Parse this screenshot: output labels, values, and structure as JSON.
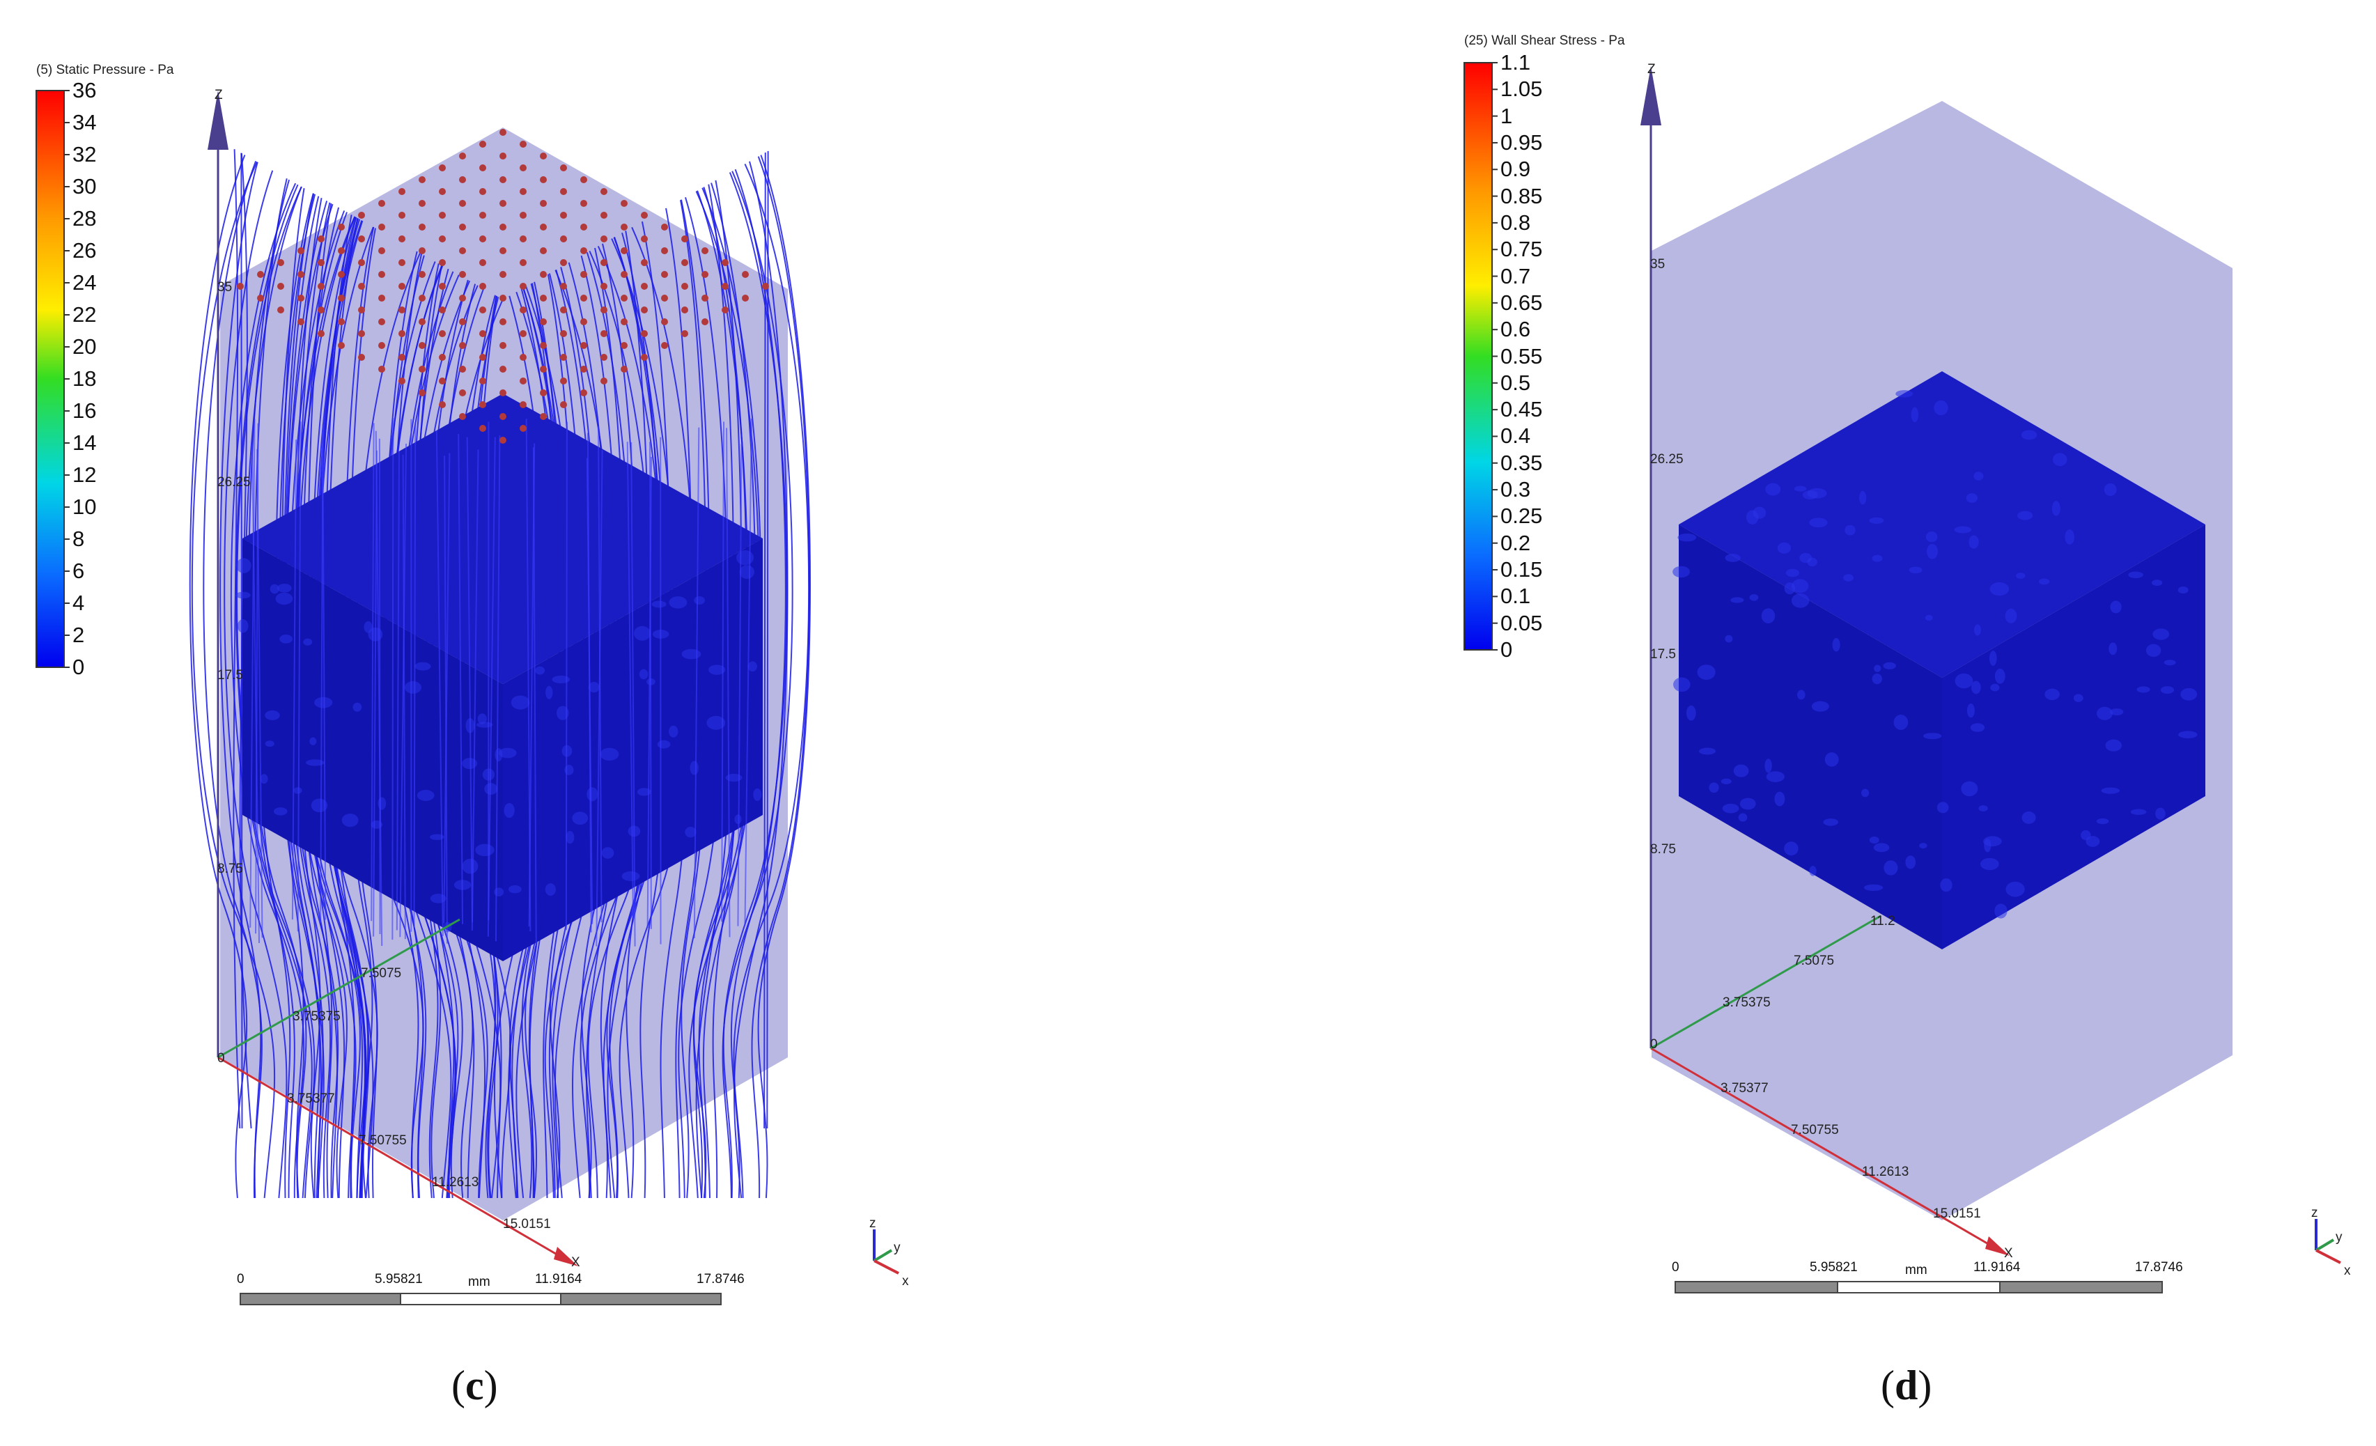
{
  "panel_c": {
    "legend": {
      "title": "(5) Static Pressure - Pa",
      "labels": [
        "36",
        "34",
        "32",
        "30",
        "28",
        "26",
        "24",
        "22",
        "20",
        "18",
        "16",
        "14",
        "12",
        "10",
        "8",
        "6",
        "4",
        "2",
        "0"
      ]
    },
    "z_ticks": [
      "35",
      "26.25",
      "17.5",
      "8.75",
      "0"
    ],
    "y_ticks": [
      "3.75375",
      "7.5075"
    ],
    "x_ticks": [
      "3.75377",
      "7.50755",
      "11.2613",
      "15.0151"
    ],
    "axis_letters": {
      "z": "Z",
      "x": "X"
    },
    "scale": {
      "labels": [
        "0",
        "5.95821",
        "11.9164",
        "17.8746"
      ],
      "unit": "mm"
    },
    "triad": {
      "z": "z",
      "y": "y",
      "x": "x"
    },
    "caption_open": "(",
    "caption_letter": "c",
    "caption_close": ")"
  },
  "panel_d": {
    "legend": {
      "title": "(25) Wall Shear Stress - Pa",
      "labels": [
        "1.1",
        "1.05",
        "1",
        "0.95",
        "0.9",
        "0.85",
        "0.8",
        "0.75",
        "0.7",
        "0.65",
        "0.6",
        "0.55",
        "0.5",
        "0.45",
        "0.4",
        "0.35",
        "0.3",
        "0.25",
        "0.2",
        "0.15",
        "0.1",
        "0.05",
        "0"
      ]
    },
    "z_ticks": [
      "35",
      "26.25",
      "17.5",
      "8.75",
      "0"
    ],
    "y_ticks": [
      "11.2",
      "7.5075",
      "3.75375"
    ],
    "x_ticks": [
      "3.75377",
      "7.50755",
      "11.2613",
      "15.0151"
    ],
    "axis_letters": {
      "z": "Z",
      "x": "X"
    },
    "scale": {
      "labels": [
        "0",
        "5.95821",
        "11.9164",
        "17.8746"
      ],
      "unit": "mm"
    },
    "triad": {
      "z": "z",
      "y": "y",
      "x": "x"
    },
    "caption_open": "(",
    "caption_letter": "d",
    "caption_close": ")"
  },
  "colors": {
    "domain_fill": "#b8b8e2",
    "block_fill": "#1518b8",
    "streamline": "#1a1ae6",
    "seed_point": "#b23a3a",
    "z_axis": "#4a3f8f",
    "x_axis": "#d0303a",
    "y_axis": "#2e9a4a"
  }
}
